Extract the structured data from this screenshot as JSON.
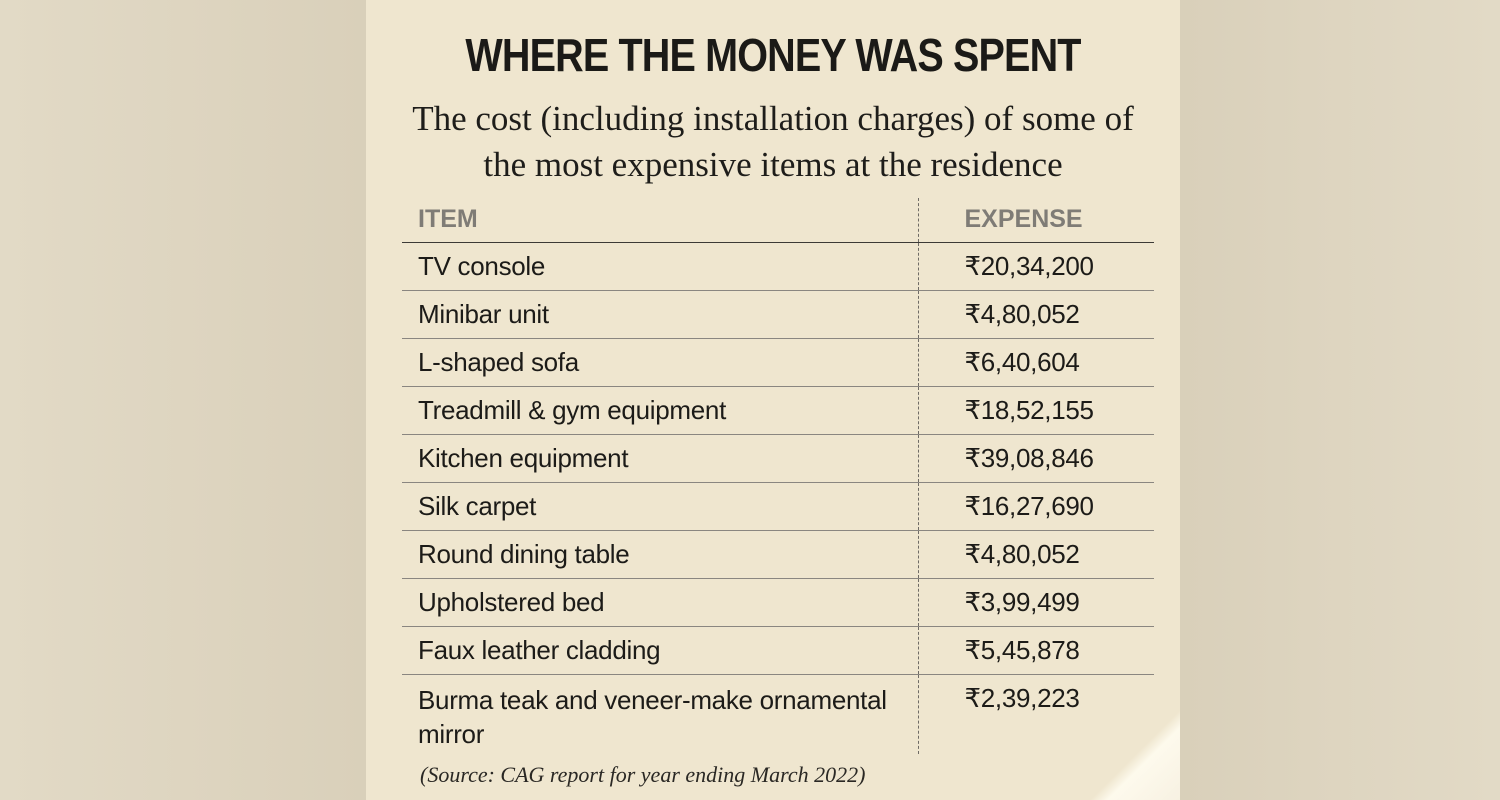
{
  "title": "WHERE THE MONEY WAS SPENT",
  "subtitle": "The cost (including installation charges) of some of the most expensive items at the residence",
  "table": {
    "headers": {
      "item": "ITEM",
      "expense": "EXPENSE"
    },
    "rows": [
      {
        "item": "TV console",
        "expense": "₹20,34,200"
      },
      {
        "item": "Minibar unit",
        "expense": "₹4,80,052"
      },
      {
        "item": "L-shaped sofa",
        "expense": "₹6,40,604"
      },
      {
        "item": "Treadmill & gym equipment",
        "expense": "₹18,52,155"
      },
      {
        "item": "Kitchen equipment",
        "expense": "₹39,08,846"
      },
      {
        "item": "Silk carpet",
        "expense": "₹16,27,690"
      },
      {
        "item": "Round dining table",
        "expense": "₹4,80,052"
      },
      {
        "item": "Upholstered bed",
        "expense": "₹3,99,499"
      },
      {
        "item": "Faux leather cladding",
        "expense": "₹5,45,878"
      },
      {
        "item": "Burma teak and veneer-make ornamental mirror",
        "expense": "₹2,39,223"
      }
    ]
  },
  "source": "(Source: CAG report for year ending March 2022)",
  "colors": {
    "card_background": "#efe6cf",
    "header_text": "#7f7c76",
    "body_text": "#1c1b18"
  }
}
